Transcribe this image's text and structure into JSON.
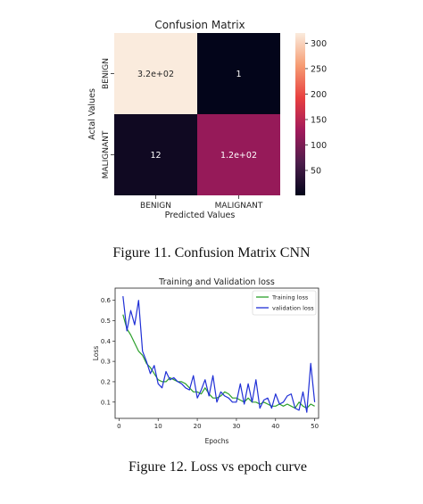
{
  "chart_data": [
    {
      "type": "heatmap",
      "title": "Confusion Matrix",
      "xlabel": "Predicted Values",
      "ylabel": "Actal Values",
      "x_categories": [
        "BENIGN",
        "MALIGNANT"
      ],
      "y_categories": [
        "BENIGN",
        "MALIGNANT"
      ],
      "values": [
        [
          320,
          1
        ],
        [
          12,
          120
        ]
      ],
      "annotations": [
        [
          "3.2e+02",
          "1"
        ],
        [
          "12",
          "1.2e+02"
        ]
      ],
      "colorbar": {
        "min": 1,
        "max": 320,
        "ticks": [
          50,
          100,
          150,
          200,
          250,
          300
        ]
      },
      "colormap": [
        "#03051a",
        "#4c1d4b",
        "#a11a5b",
        "#e83f3f",
        "#f69c73",
        "#faebdd"
      ],
      "caption": "Figure 11. Confusion Matrix CNN"
    },
    {
      "type": "line",
      "title": "Training and Validation loss",
      "xlabel": "Epochs",
      "ylabel": "Loss",
      "xlim": [
        -1,
        51
      ],
      "ylim": [
        0.02,
        0.66
      ],
      "xticks": [
        0,
        10,
        20,
        30,
        40,
        50
      ],
      "yticks": [
        0.1,
        0.2,
        0.3,
        0.4,
        0.5,
        0.6
      ],
      "legend_position": "top-right",
      "x": [
        1,
        2,
        3,
        4,
        5,
        6,
        7,
        8,
        9,
        10,
        11,
        12,
        13,
        14,
        15,
        16,
        17,
        18,
        19,
        20,
        21,
        22,
        23,
        24,
        25,
        26,
        27,
        28,
        29,
        30,
        31,
        32,
        33,
        34,
        35,
        36,
        37,
        38,
        39,
        40,
        41,
        42,
        43,
        44,
        45,
        46,
        47,
        48,
        49,
        50
      ],
      "series": [
        {
          "name": "Training loss",
          "color": "#2ca02c",
          "values": [
            0.53,
            0.46,
            0.43,
            0.39,
            0.35,
            0.33,
            0.29,
            0.27,
            0.24,
            0.21,
            0.2,
            0.2,
            0.22,
            0.21,
            0.2,
            0.2,
            0.19,
            0.17,
            0.15,
            0.15,
            0.14,
            0.17,
            0.14,
            0.12,
            0.12,
            0.13,
            0.15,
            0.14,
            0.12,
            0.12,
            0.11,
            0.1,
            0.12,
            0.1,
            0.1,
            0.09,
            0.1,
            0.09,
            0.08,
            0.08,
            0.09,
            0.08,
            0.09,
            0.08,
            0.07,
            0.1,
            0.08,
            0.07,
            0.09,
            0.08
          ]
        },
        {
          "name": "validation loss",
          "color": "#1f2fd6",
          "values": [
            0.62,
            0.45,
            0.55,
            0.48,
            0.6,
            0.35,
            0.3,
            0.24,
            0.28,
            0.19,
            0.17,
            0.25,
            0.21,
            0.22,
            0.2,
            0.19,
            0.17,
            0.16,
            0.23,
            0.12,
            0.16,
            0.21,
            0.13,
            0.23,
            0.1,
            0.15,
            0.13,
            0.12,
            0.1,
            0.1,
            0.19,
            0.09,
            0.19,
            0.1,
            0.21,
            0.07,
            0.11,
            0.12,
            0.07,
            0.14,
            0.09,
            0.1,
            0.13,
            0.14,
            0.07,
            0.06,
            0.15,
            0.05,
            0.29,
            0.1
          ]
        }
      ],
      "caption": "Figure 12. Loss vs epoch curve"
    }
  ]
}
